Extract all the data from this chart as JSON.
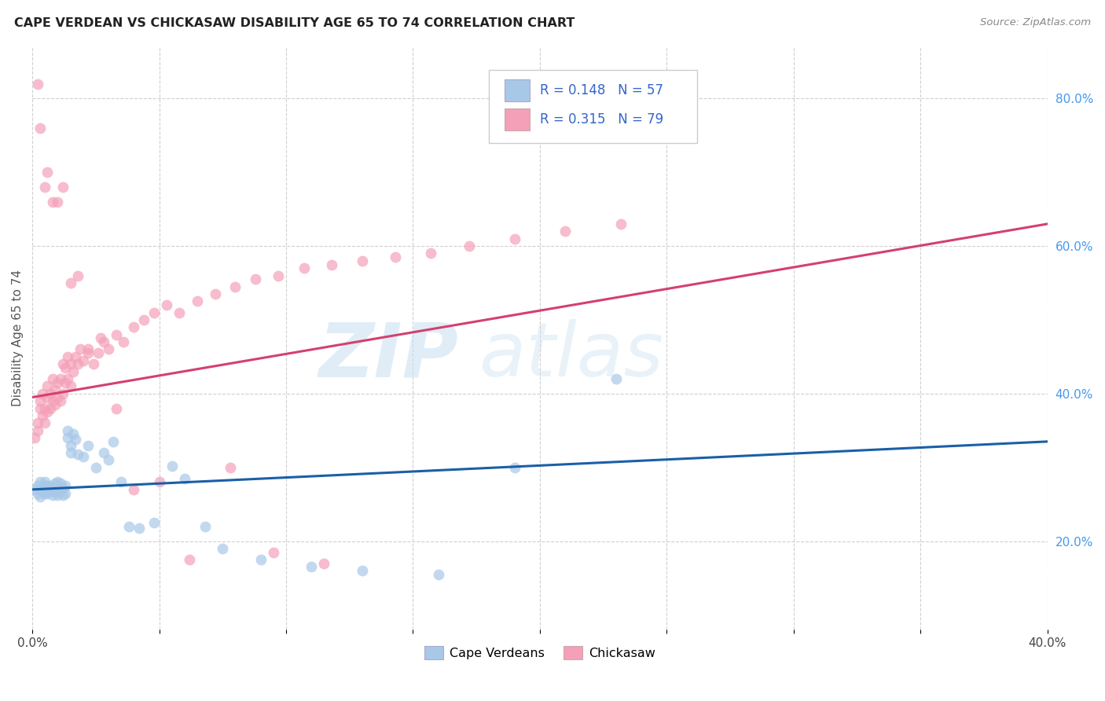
{
  "title": "CAPE VERDEAN VS CHICKASAW DISABILITY AGE 65 TO 74 CORRELATION CHART",
  "source": "Source: ZipAtlas.com",
  "ylabel": "Disability Age 65 to 74",
  "xmin": 0.0,
  "xmax": 0.4,
  "ymin": 0.08,
  "ymax": 0.87,
  "blue_R": 0.148,
  "blue_N": 57,
  "pink_R": 0.315,
  "pink_N": 79,
  "blue_color": "#a8c8e8",
  "pink_color": "#f4a0b8",
  "blue_line_color": "#1a5fa8",
  "pink_line_color": "#d44070",
  "legend_labels": [
    "Cape Verdeans",
    "Chickasaw"
  ],
  "blue_line_y0": 0.27,
  "blue_line_y1": 0.335,
  "pink_line_y0": 0.395,
  "pink_line_y1": 0.63,
  "blue_scatter_x": [
    0.001,
    0.002,
    0.002,
    0.003,
    0.003,
    0.003,
    0.004,
    0.004,
    0.005,
    0.005,
    0.005,
    0.006,
    0.006,
    0.006,
    0.007,
    0.007,
    0.007,
    0.008,
    0.008,
    0.009,
    0.009,
    0.01,
    0.01,
    0.01,
    0.011,
    0.011,
    0.012,
    0.012,
    0.013,
    0.013,
    0.014,
    0.014,
    0.015,
    0.015,
    0.016,
    0.017,
    0.018,
    0.02,
    0.022,
    0.025,
    0.028,
    0.03,
    0.032,
    0.035,
    0.038,
    0.042,
    0.048,
    0.055,
    0.06,
    0.068,
    0.075,
    0.09,
    0.11,
    0.13,
    0.16,
    0.19,
    0.23
  ],
  "blue_scatter_y": [
    0.27,
    0.265,
    0.275,
    0.26,
    0.27,
    0.28,
    0.272,
    0.268,
    0.265,
    0.275,
    0.28,
    0.268,
    0.275,
    0.265,
    0.27,
    0.275,
    0.268,
    0.272,
    0.262,
    0.268,
    0.278,
    0.27,
    0.28,
    0.262,
    0.268,
    0.278,
    0.272,
    0.262,
    0.275,
    0.265,
    0.34,
    0.35,
    0.33,
    0.32,
    0.345,
    0.338,
    0.318,
    0.315,
    0.33,
    0.3,
    0.32,
    0.31,
    0.335,
    0.28,
    0.22,
    0.218,
    0.225,
    0.302,
    0.285,
    0.22,
    0.19,
    0.175,
    0.165,
    0.16,
    0.155,
    0.3,
    0.42
  ],
  "pink_scatter_x": [
    0.001,
    0.002,
    0.002,
    0.003,
    0.003,
    0.004,
    0.004,
    0.005,
    0.005,
    0.006,
    0.006,
    0.006,
    0.007,
    0.007,
    0.008,
    0.008,
    0.009,
    0.009,
    0.01,
    0.01,
    0.011,
    0.011,
    0.012,
    0.012,
    0.013,
    0.013,
    0.014,
    0.014,
    0.015,
    0.015,
    0.016,
    0.017,
    0.018,
    0.019,
    0.02,
    0.022,
    0.024,
    0.026,
    0.028,
    0.03,
    0.033,
    0.036,
    0.04,
    0.044,
    0.048,
    0.053,
    0.058,
    0.065,
    0.072,
    0.08,
    0.088,
    0.097,
    0.107,
    0.118,
    0.13,
    0.143,
    0.157,
    0.172,
    0.19,
    0.21,
    0.232,
    0.002,
    0.003,
    0.005,
    0.006,
    0.008,
    0.01,
    0.012,
    0.015,
    0.018,
    0.022,
    0.027,
    0.033,
    0.04,
    0.05,
    0.062,
    0.078,
    0.095,
    0.115
  ],
  "pink_scatter_y": [
    0.34,
    0.36,
    0.35,
    0.38,
    0.39,
    0.37,
    0.4,
    0.36,
    0.38,
    0.375,
    0.395,
    0.41,
    0.38,
    0.4,
    0.39,
    0.42,
    0.385,
    0.405,
    0.395,
    0.415,
    0.39,
    0.42,
    0.4,
    0.44,
    0.415,
    0.435,
    0.42,
    0.45,
    0.41,
    0.44,
    0.43,
    0.45,
    0.44,
    0.46,
    0.445,
    0.455,
    0.44,
    0.455,
    0.47,
    0.46,
    0.48,
    0.47,
    0.49,
    0.5,
    0.51,
    0.52,
    0.51,
    0.525,
    0.535,
    0.545,
    0.555,
    0.56,
    0.57,
    0.575,
    0.58,
    0.585,
    0.59,
    0.6,
    0.61,
    0.62,
    0.63,
    0.82,
    0.76,
    0.68,
    0.7,
    0.66,
    0.66,
    0.68,
    0.55,
    0.56,
    0.46,
    0.475,
    0.38,
    0.27,
    0.28,
    0.175,
    0.3,
    0.185,
    0.17
  ]
}
